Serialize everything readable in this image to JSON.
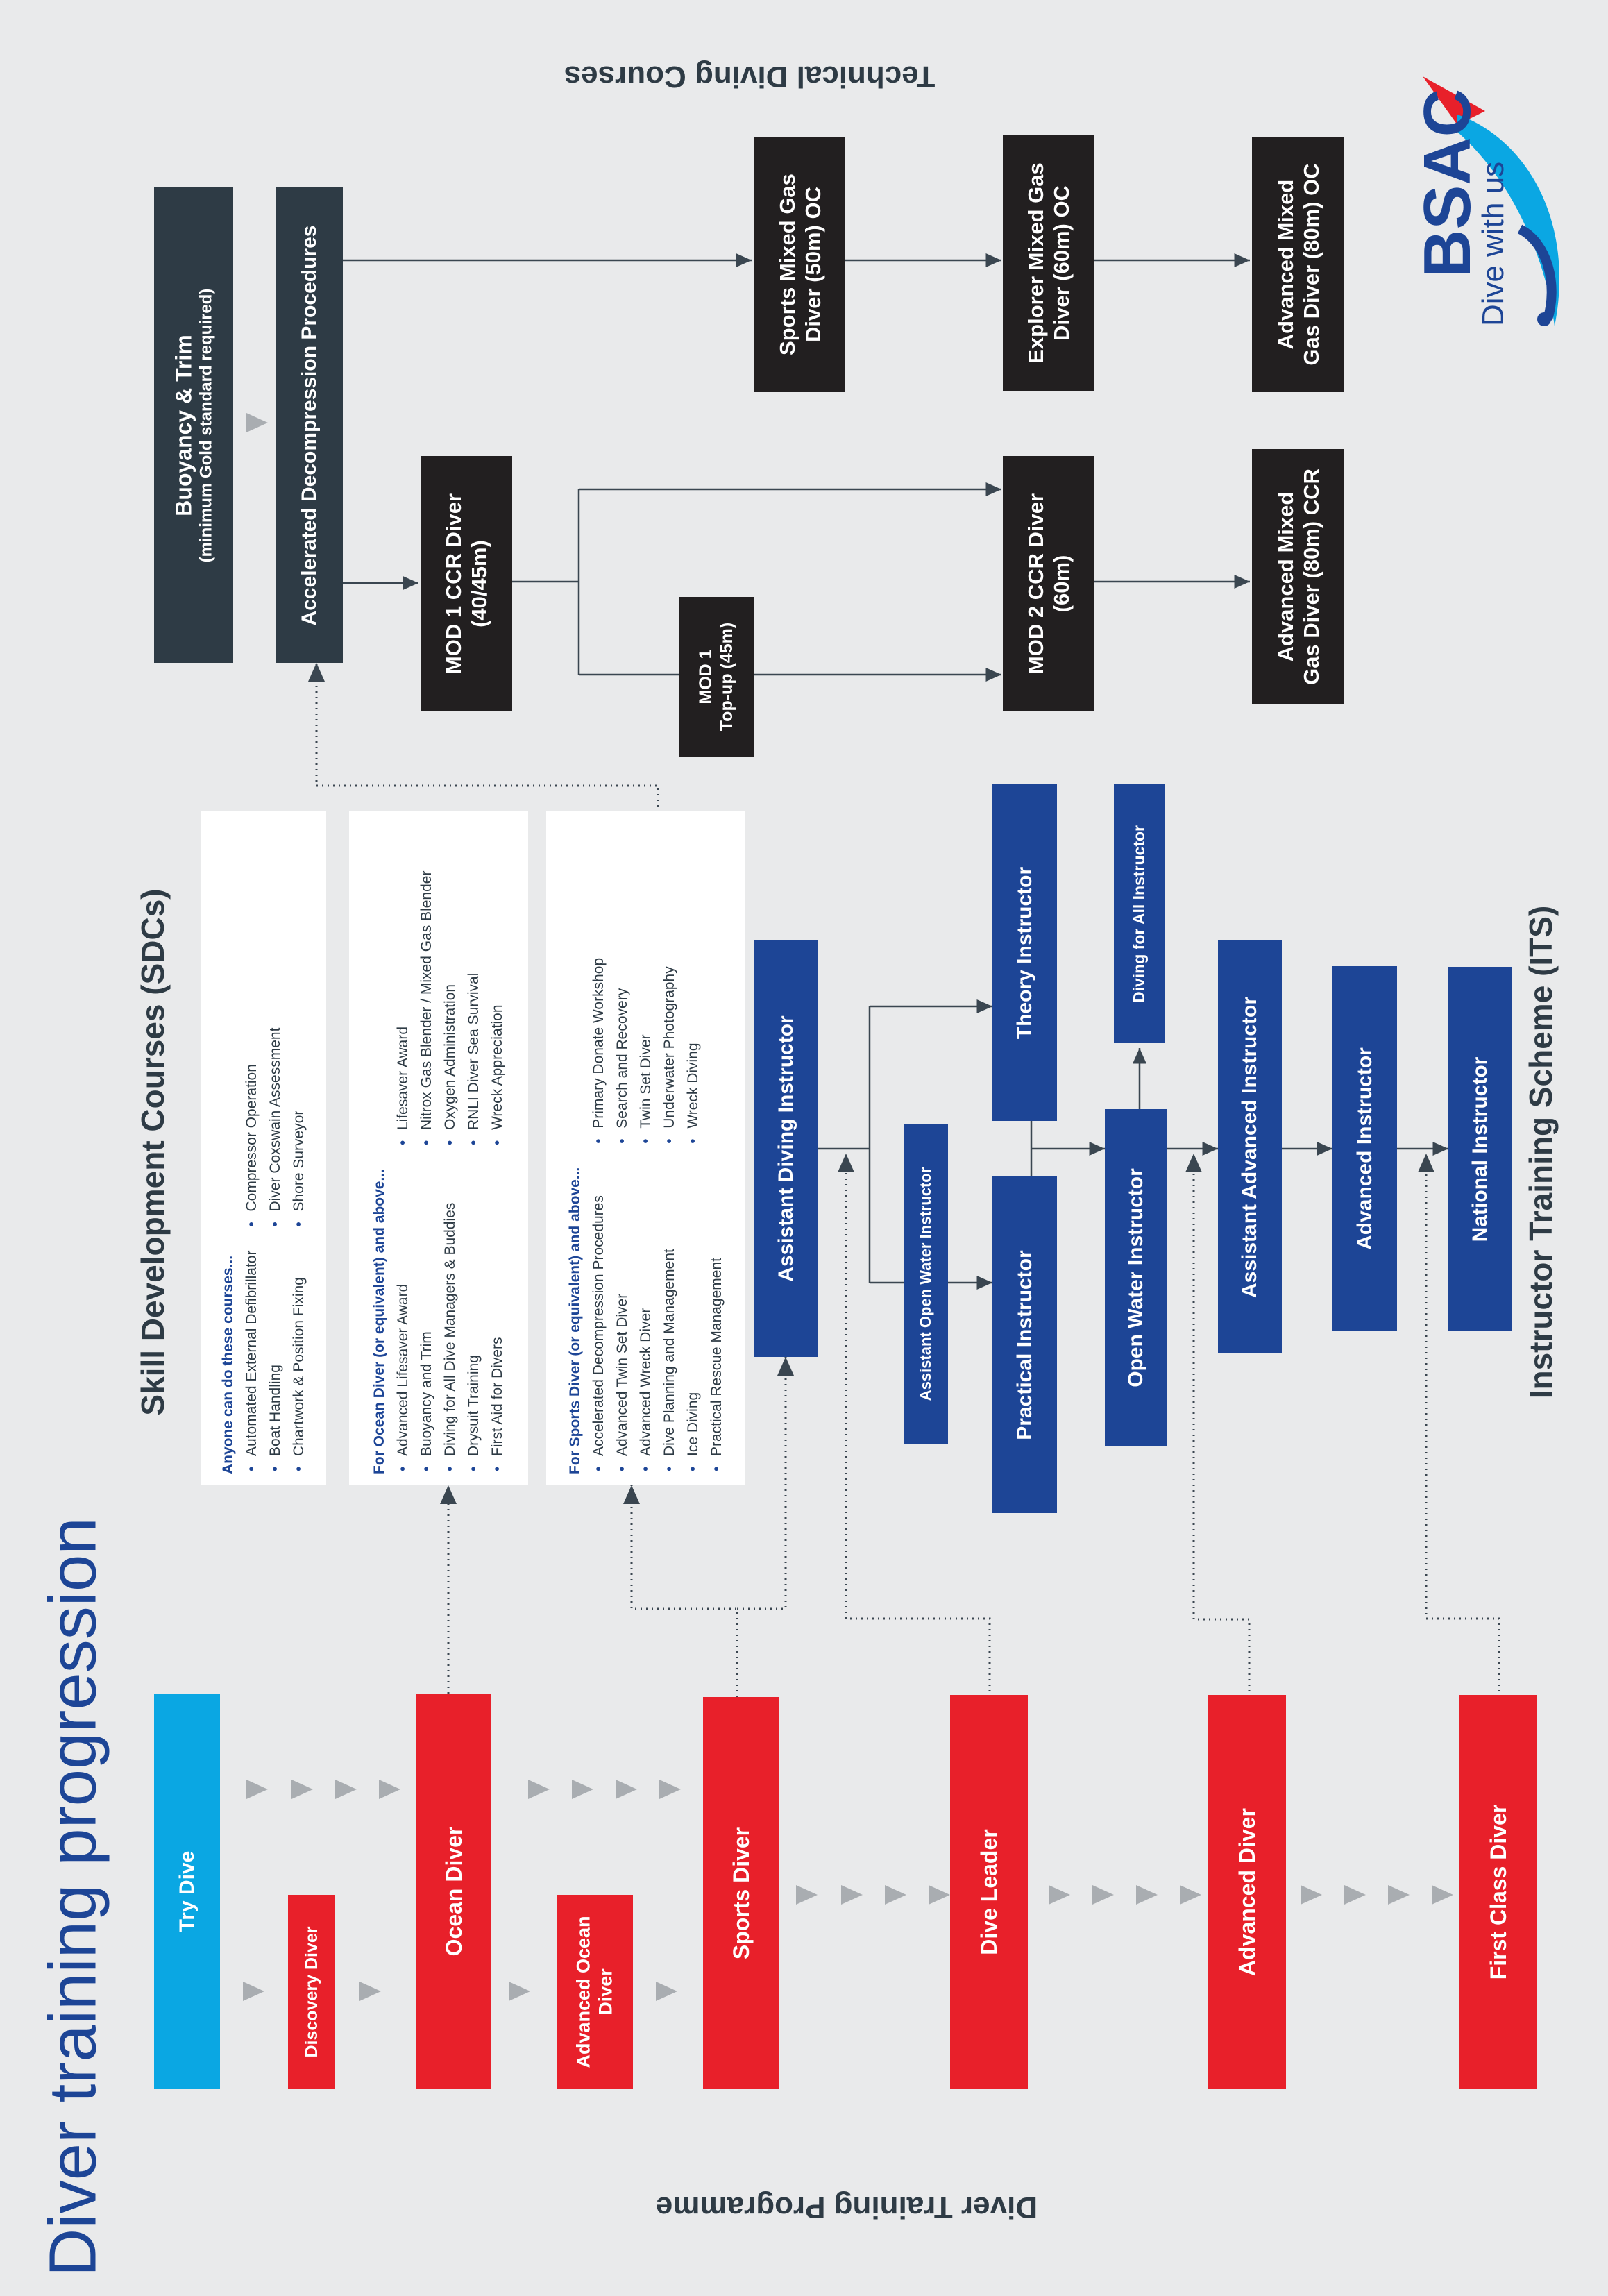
{
  "title": "Diver training progression",
  "headings": {
    "programme": "Diver Training Programme",
    "sdc": "Skill Development Courses (SDCs)",
    "its": "Instructor Training Scheme (ITS)",
    "technical": "Technical Diving Courses"
  },
  "logo": {
    "brand": "BSAC",
    "tagline": "Dive with us"
  },
  "colors": {
    "diver_red": "#e8202a",
    "instructor_blue": "#1d4596",
    "try_dive_cyan": "#0aa7e3",
    "technical_black": "#221f20",
    "prerequisite_slate": "#2e3b45",
    "background": "#e9eaeb"
  },
  "programme": {
    "try_dive": "Try Dive",
    "discovery_diver": "Discovery Diver",
    "ocean_diver": "Ocean Diver",
    "advanced_ocean_diver": "Advanced Ocean Diver",
    "sports_diver": "Sports Diver",
    "dive_leader": "Dive Leader",
    "advanced_diver": "Advanced Diver",
    "first_class_diver": "First Class Diver"
  },
  "sdc": {
    "anyone": {
      "heading": "Anyone can do these courses...",
      "col1": [
        "Automated External Defibrillator",
        "Boat Handling",
        "Chartwork & Position Fixing"
      ],
      "col2": [
        "Compressor Operation",
        "Diver Coxswain Assessment",
        "Shore Surveyor"
      ]
    },
    "ocean": {
      "heading_prefix": "For ",
      "heading_level": "Ocean Diver",
      "heading_suffix": " (or equivalent) and above...",
      "col1": [
        "Advanced Lifesaver Award",
        "Buoyancy and Trim",
        "Diving for All Dive Managers & Buddies",
        "Drysuit Training",
        "First Aid for Divers"
      ],
      "col2": [
        "Lifesaver Award",
        "Nitrox Gas Blender / Mixed Gas Blender",
        "Oxygen Administration",
        "RNLI Diver Sea Survival",
        "Wreck Appreciation"
      ]
    },
    "sports": {
      "heading_prefix": "For ",
      "heading_level": "Sports Diver",
      "heading_suffix": " (or equivalent) and above...",
      "col1": [
        "Accelerated Decompression Procedures",
        "Advanced Twin Set Diver",
        "Advanced Wreck Diver",
        "Dive Planning and Management",
        "Ice Diving",
        "Practical Rescue Management"
      ],
      "col2": [
        "Primary Donate Workshop",
        "Search and Recovery",
        "Twin Set Diver",
        "Underwater Photography",
        "Wreck Diving"
      ]
    }
  },
  "its": {
    "assistant_diving_instructor": "Assistant Diving Instructor",
    "assistant_open_water_instructor": "Assistant Open Water Instructor",
    "practical_instructor": "Practical Instructor",
    "theory_instructor": "Theory Instructor",
    "open_water_instructor": "Open Water Instructor",
    "diving_for_all_instructor": "Diving for All Instructor",
    "assistant_advanced_instructor": "Assistant Advanced Instructor",
    "advanced_instructor": "Advanced Instructor",
    "national_instructor": "National Instructor"
  },
  "technical": {
    "buoyancy_trim": "Buoyancy & Trim",
    "buoyancy_trim_note": "(minimum Gold standard required)",
    "accelerated_decompression": "Accelerated Decompression Procedures",
    "mod1_ccr": "MOD 1 CCR Diver",
    "mod1_ccr_depth": "(40/45m)",
    "mod1_topup": "MOD 1",
    "mod1_topup_depth": "Top-up (45m)",
    "sports_mixed_gas": "Sports Mixed Gas",
    "sports_mixed_gas_depth": "Diver (50m) OC",
    "explorer_mixed_gas": "Explorer Mixed Gas",
    "explorer_mixed_gas_depth": "Diver (60m) OC",
    "advanced_mixed_oc": "Advanced Mixed",
    "advanced_mixed_oc_depth": "Gas Diver (80m) OC",
    "mod2_ccr": "MOD 2 CCR Diver",
    "mod2_ccr_depth": "(60m)",
    "advanced_mixed_ccr": "Advanced Mixed",
    "advanced_mixed_ccr_depth": "Gas Diver (80m) CCR"
  }
}
